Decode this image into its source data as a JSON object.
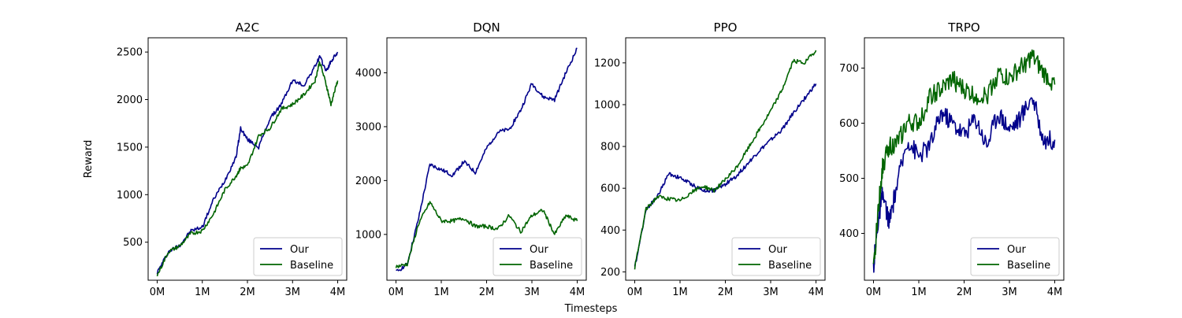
{
  "figure": {
    "shared_ylabel": "Reward",
    "shared_xlabel": "Timesteps"
  },
  "colors": {
    "Our": "#00008b",
    "Baseline": "#006400"
  },
  "chart_data": [
    {
      "type": "line",
      "title": "A2C",
      "xlabel": "Timesteps",
      "ylabel": "Reward",
      "xlim": [
        -0.2,
        4.2
      ],
      "ylim": [
        100,
        2650
      ],
      "xticks": [
        "0M",
        "1M",
        "2M",
        "3M",
        "4M"
      ],
      "xtick_values": [
        0,
        1,
        2,
        3,
        4
      ],
      "yticks": [
        500,
        1000,
        1500,
        2000,
        2500
      ],
      "legend": {
        "loc": "lower-right",
        "entries": [
          "Our",
          "Baseline"
        ]
      },
      "x": [
        0,
        0.25,
        0.5,
        0.75,
        1.0,
        1.25,
        1.5,
        1.75,
        1.85,
        2.0,
        2.25,
        2.5,
        2.75,
        3.0,
        3.25,
        3.5,
        3.6,
        3.75,
        3.85,
        4.0
      ],
      "series": [
        {
          "name": "Our",
          "values": [
            180,
            400,
            470,
            620,
            660,
            950,
            1150,
            1400,
            1700,
            1580,
            1500,
            1800,
            1950,
            2200,
            2150,
            2350,
            2450,
            2300,
            2400,
            2500
          ]
        },
        {
          "name": "Baseline",
          "values": [
            150,
            400,
            460,
            590,
            620,
            800,
            1050,
            1200,
            1280,
            1300,
            1620,
            1700,
            1900,
            1950,
            2050,
            2200,
            2400,
            2150,
            1950,
            2200
          ]
        }
      ]
    },
    {
      "type": "line",
      "title": "DQN",
      "xlabel": "Timesteps",
      "ylabel": "Reward",
      "xlim": [
        -0.2,
        4.2
      ],
      "ylim": [
        150,
        4650
      ],
      "xticks": [
        "0M",
        "1M",
        "2M",
        "3M",
        "4M"
      ],
      "xtick_values": [
        0,
        1,
        2,
        3,
        4
      ],
      "yticks": [
        1000,
        2000,
        3000,
        4000
      ],
      "legend": {
        "loc": "lower-right",
        "entries": [
          "Our",
          "Baseline"
        ]
      },
      "x": [
        0,
        0.25,
        0.5,
        0.75,
        1.0,
        1.25,
        1.5,
        1.75,
        2.0,
        2.25,
        2.5,
        2.75,
        3.0,
        3.25,
        3.5,
        3.75,
        4.0
      ],
      "series": [
        {
          "name": "Our",
          "values": [
            300,
            450,
            1300,
            2300,
            2200,
            2100,
            2350,
            2150,
            2600,
            2900,
            2950,
            3300,
            3800,
            3550,
            3500,
            4000,
            4450
          ]
        },
        {
          "name": "Baseline",
          "values": [
            400,
            450,
            1200,
            1600,
            1250,
            1250,
            1300,
            1150,
            1150,
            1100,
            1350,
            1050,
            1350,
            1450,
            1000,
            1350,
            1250
          ]
        }
      ]
    },
    {
      "type": "line",
      "title": "PPO",
      "xlabel": "Timesteps",
      "ylabel": "Reward",
      "xlim": [
        -0.2,
        4.2
      ],
      "ylim": [
        160,
        1320
      ],
      "xticks": [
        "0M",
        "1M",
        "2M",
        "3M",
        "4M"
      ],
      "xtick_values": [
        0,
        1,
        2,
        3,
        4
      ],
      "yticks": [
        200,
        400,
        600,
        800,
        1000,
        1200
      ],
      "legend": {
        "loc": "lower-right",
        "entries": [
          "Our",
          "Baseline"
        ]
      },
      "x": [
        0,
        0.25,
        0.5,
        0.75,
        1.0,
        1.25,
        1.5,
        1.75,
        2.0,
        2.25,
        2.5,
        2.75,
        3.0,
        3.25,
        3.5,
        3.75,
        4.0
      ],
      "series": [
        {
          "name": "Our",
          "values": [
            220,
            500,
            560,
            670,
            650,
            620,
            590,
            590,
            620,
            660,
            720,
            780,
            830,
            880,
            960,
            1030,
            1100
          ]
        },
        {
          "name": "Baseline",
          "values": [
            220,
            500,
            560,
            550,
            540,
            580,
            610,
            590,
            640,
            700,
            790,
            880,
            970,
            1070,
            1210,
            1200,
            1260
          ]
        }
      ]
    },
    {
      "type": "line",
      "title": "TRPO",
      "xlabel": "Timesteps",
      "ylabel": "Reward",
      "xlim": [
        -0.2,
        4.2
      ],
      "ylim": [
        315,
        755
      ],
      "xticks": [
        "0M",
        "1M",
        "2M",
        "3M",
        "4M"
      ],
      "xtick_values": [
        0,
        1,
        2,
        3,
        4
      ],
      "yticks": [
        400,
        500,
        600,
        700
      ],
      "legend": {
        "loc": "lower-right",
        "entries": [
          "Our",
          "Baseline"
        ]
      },
      "x": [
        0,
        0.1,
        0.2,
        0.35,
        0.5,
        0.75,
        1.0,
        1.25,
        1.5,
        1.75,
        2.0,
        2.25,
        2.5,
        2.75,
        3.0,
        3.25,
        3.5,
        3.75,
        4.0
      ],
      "series": [
        {
          "name": "Our",
          "values": [
            340,
            420,
            470,
            420,
            480,
            570,
            540,
            560,
            620,
            600,
            580,
            610,
            560,
            620,
            590,
            610,
            650,
            570,
            570
          ]
        },
        {
          "name": "Baseline",
          "values": [
            330,
            440,
            520,
            560,
            560,
            600,
            600,
            650,
            660,
            680,
            660,
            650,
            650,
            690,
            680,
            700,
            720,
            690,
            670
          ]
        }
      ]
    }
  ]
}
